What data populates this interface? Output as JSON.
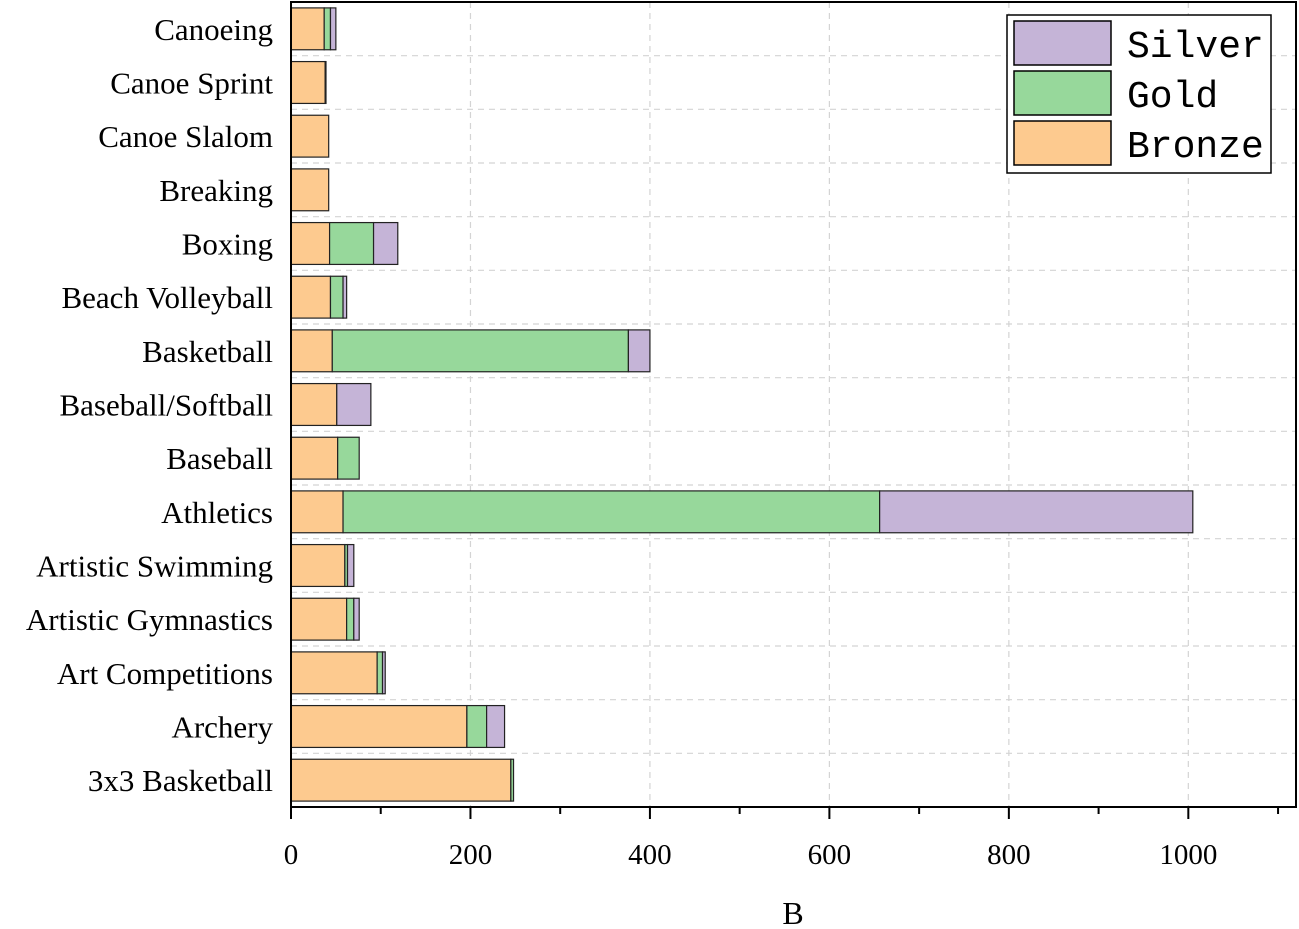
{
  "chart_data": {
    "type": "bar",
    "orientation": "horizontal",
    "stacked": true,
    "categories": [
      "3x3 Basketball",
      "Archery",
      "Art Competitions",
      "Artistic Gymnastics",
      "Artistic Swimming",
      "Athletics",
      "Baseball",
      "Baseball/Softball",
      "Basketball",
      "Beach Volleyball",
      "Boxing",
      "Breaking",
      "Canoe Slalom",
      "Canoe Sprint",
      "Canoeing"
    ],
    "series": [
      {
        "name": "Bronze",
        "color": "#fdca8f",
        "values": [
          245,
          196,
          96,
          62,
          60,
          58,
          52,
          51,
          46,
          44,
          43,
          42,
          42,
          38,
          37
        ]
      },
      {
        "name": "Gold",
        "color": "#97d89b",
        "values": [
          3,
          22,
          6,
          8,
          3,
          598,
          24,
          0,
          330,
          14,
          49,
          0,
          0,
          0,
          7
        ]
      },
      {
        "name": "Silver",
        "color": "#c5b4d7",
        "values": [
          0,
          20,
          3,
          6,
          7,
          349,
          0,
          38,
          24,
          4,
          27,
          0,
          0,
          1,
          6
        ]
      }
    ],
    "xlabel": "B",
    "ylabel": "",
    "xlim": [
      0,
      1120
    ],
    "xticks": [
      0,
      200,
      400,
      600,
      800,
      1000
    ],
    "grid": true,
    "legend": {
      "position": "top-right",
      "order": [
        "Silver",
        "Gold",
        "Bronze"
      ]
    }
  }
}
